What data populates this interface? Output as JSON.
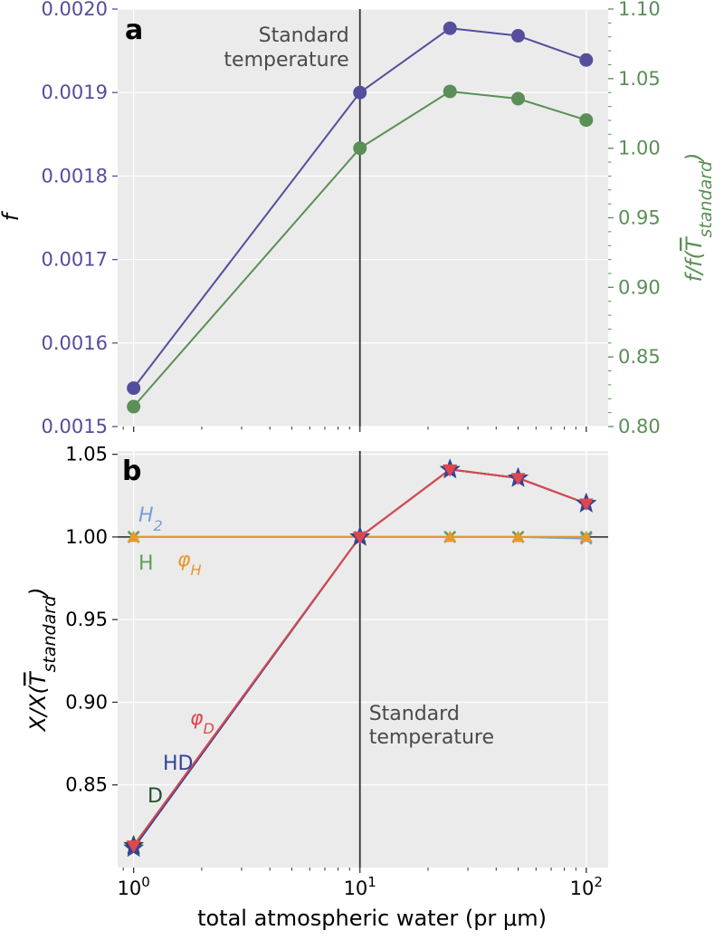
{
  "colors": {
    "purple": "#544e9c",
    "green": "#5a8f57",
    "h2_blue": "#7b9dd1",
    "h_green": "#5fa05a",
    "phi_h_orange": "#e59a2c",
    "phi_d_red": "#e0474d",
    "hd_navy": "#34439a",
    "d_darkgreen": "#23512a",
    "panel_bg": "#ebebeb"
  },
  "chart_data": [
    {
      "type": "line",
      "panel_label": "a",
      "title": "",
      "xlabel": "",
      "xscale": "log",
      "xlim": [
        0.85,
        125
      ],
      "x": [
        1,
        10,
        25,
        50,
        100
      ],
      "ylabel": "f",
      "ylim": [
        0.0015,
        0.002
      ],
      "yticks": [
        "0.0015",
        "0.0016",
        "0.0017",
        "0.0018",
        "0.0019",
        "0.0020"
      ],
      "ylabel_right": "f/f(T̄standard)",
      "ylabel_right_base": "f/f(",
      "ylabel_right_T": "T",
      "ylabel_right_sub": "standard",
      "ylabel_right_close": ")",
      "ylim_right": [
        0.8,
        1.1
      ],
      "yticks_right": [
        "0.80",
        "0.85",
        "0.90",
        "0.95",
        "1.00",
        "1.05",
        "1.10"
      ],
      "grid": true,
      "vline_x": 10,
      "annotation": [
        "Standard",
        "temperature"
      ],
      "series": [
        {
          "values": [
            0.001546,
            0.0019,
            0.001977,
            0.001968,
            0.001939
          ],
          "axis": "left",
          "color": "#544e9c",
          "marker": "circle"
        },
        {
          "values": [
            0.8143,
            1.0,
            1.0408,
            1.0356,
            1.0202
          ],
          "axis": "right",
          "color": "#5a8f57",
          "marker": "circle"
        }
      ]
    },
    {
      "type": "line",
      "panel_label": "b",
      "title": "",
      "xlabel": "total atmospheric water (pr μm)",
      "xscale": "log",
      "xlim": [
        0.85,
        125
      ],
      "x": [
        1,
        10,
        25,
        50,
        100
      ],
      "xticks": [
        {
          "base": "10",
          "exp": "0"
        },
        {
          "base": "10",
          "exp": "1"
        },
        {
          "base": "10",
          "exp": "2"
        }
      ],
      "ylabel": "X/X(T̄standard)",
      "ylabel_base": "X/X(",
      "ylabel_T": "T",
      "ylabel_sub": "standard",
      "ylabel_close": ")",
      "ylim": [
        0.8,
        1.052
      ],
      "yticks": [
        "0.85",
        "0.90",
        "0.95",
        "1.00",
        "1.05"
      ],
      "grid": true,
      "vline_x": 10,
      "hline_y": 1.0,
      "annotation": [
        "Standard",
        "temperature"
      ],
      "series": [
        {
          "name": "H2",
          "name_base": "H",
          "name_sub": "2",
          "values": [
            1.0,
            1.0,
            1.0,
            1.0,
            0.999
          ],
          "color": "#7b9dd1",
          "marker": "x"
        },
        {
          "name": "H",
          "values": [
            1.0,
            1.0,
            1.0,
            1.0,
            1.0
          ],
          "color": "#5fa05a",
          "marker": "x"
        },
        {
          "name": "φH",
          "name_base": "φ",
          "name_sub": "H",
          "values": [
            1.0,
            1.0,
            1.0,
            1.0,
            1.0
          ],
          "color": "#e59a2c",
          "marker": "triangle-up"
        },
        {
          "name": "D",
          "values": [
            0.8133,
            1.0,
            1.0408,
            1.0356,
            1.0202
          ],
          "color": "#23512a",
          "marker": "star"
        },
        {
          "name": "HD",
          "values": [
            0.8118,
            1.0,
            1.0408,
            1.0356,
            1.0202
          ],
          "color": "#34439a",
          "marker": "star"
        },
        {
          "name": "φD",
          "name_base": "φ",
          "name_sub": "D",
          "values": [
            0.8133,
            1.0,
            1.0408,
            1.0356,
            1.0202
          ],
          "color": "#e0474d",
          "marker": "triangle-down"
        }
      ]
    }
  ]
}
